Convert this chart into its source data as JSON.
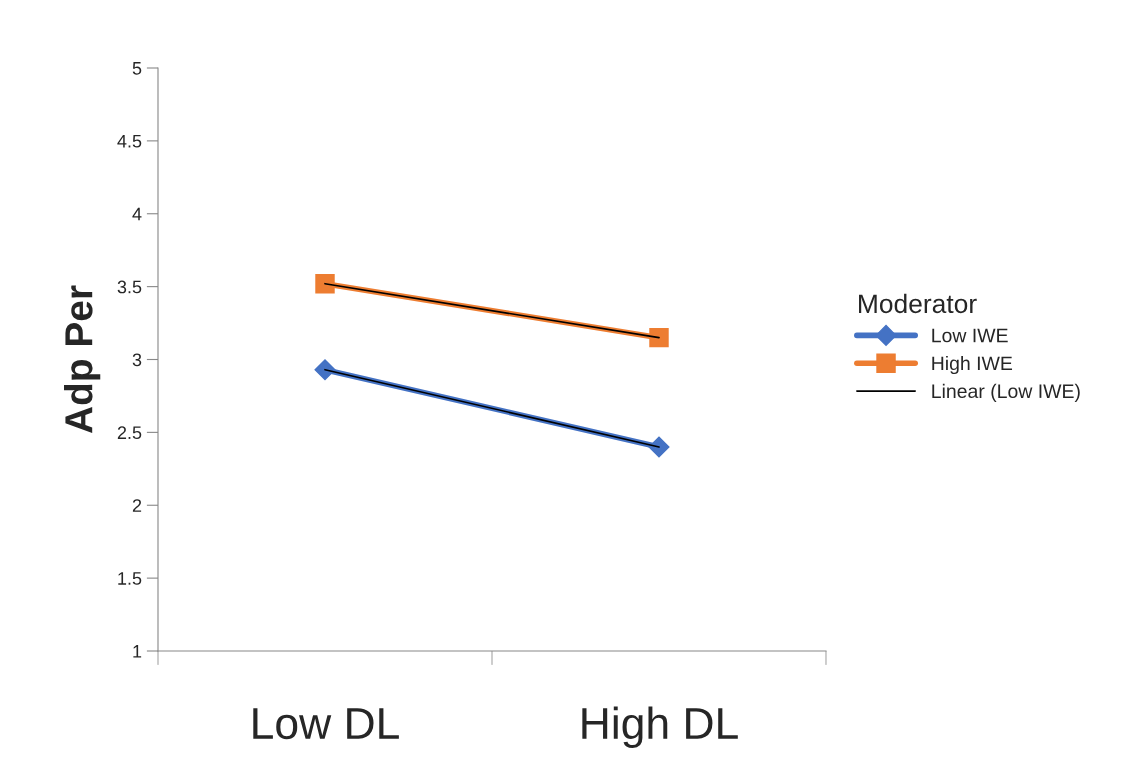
{
  "chart_data": {
    "type": "line",
    "ylabel": "Adp Per",
    "legend_title": "Moderator",
    "categories": [
      "Low DL",
      "High DL"
    ],
    "series": [
      {
        "name": "Low IWE",
        "color": "#4472c4",
        "values": [
          2.93,
          2.4
        ],
        "marker": "diamond"
      },
      {
        "name": "High IWE",
        "color": "#ed7d31",
        "values": [
          3.52,
          3.15
        ],
        "marker": "square"
      },
      {
        "name": "Linear (Low IWE)",
        "color": "#000000",
        "values": [
          2.93,
          2.4
        ],
        "marker": "none"
      },
      {
        "color": "#000000",
        "values": [
          3.52,
          3.15
        ],
        "marker": "none"
      }
    ],
    "ylim": [
      1,
      5
    ],
    "yticks": [
      1,
      1.5,
      2,
      2.5,
      3,
      3.5,
      4,
      4.5,
      5
    ],
    "grid": false,
    "legend": "right"
  }
}
